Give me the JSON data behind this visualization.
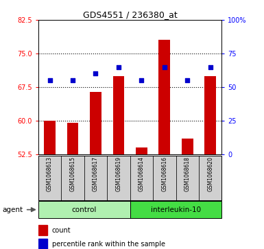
{
  "title": "GDS4551 / 236380_at",
  "samples": [
    "GSM1068613",
    "GSM1068615",
    "GSM1068617",
    "GSM1068619",
    "GSM1068614",
    "GSM1068616",
    "GSM1068618",
    "GSM1068620"
  ],
  "count_values": [
    60.0,
    59.5,
    66.5,
    70.0,
    54.0,
    78.0,
    56.0,
    70.0
  ],
  "percentile_values": [
    55,
    55,
    60,
    65,
    55,
    65,
    55,
    65
  ],
  "ylim_left": [
    52.5,
    82.5
  ],
  "ylim_right": [
    0,
    100
  ],
  "yticks_left": [
    52.5,
    60.0,
    67.5,
    75.0,
    82.5
  ],
  "yticks_right": [
    0,
    25,
    50,
    75,
    100
  ],
  "yticklabels_right": [
    "0",
    "25",
    "50",
    "75",
    "100%"
  ],
  "groups": [
    {
      "label": "control",
      "indices": [
        0,
        1,
        2,
        3
      ],
      "color": "#b0f0b0"
    },
    {
      "label": "interleukin-10",
      "indices": [
        4,
        5,
        6,
        7
      ],
      "color": "#44dd44"
    }
  ],
  "bar_color": "#CC0000",
  "dot_color": "#0000CC",
  "agent_label": "agent",
  "sample_bg_color": "#d0d0d0",
  "bar_bottom": 52.5,
  "dotted_yticks": [
    60.0,
    67.5,
    75.0
  ]
}
